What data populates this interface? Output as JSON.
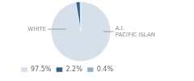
{
  "chart_data": {
    "type": "pie",
    "categories": [
      "97.5%",
      "2.2%",
      "0.4%"
    ],
    "values": [
      97.5,
      2.2,
      0.4
    ],
    "colors": [
      "#d6e0ea",
      "#2e5f8a",
      "#8faec8"
    ],
    "annotations": [
      "WHITE",
      "A.I.\nPACIFIC ISLAN"
    ],
    "legend": "lower left"
  }
}
